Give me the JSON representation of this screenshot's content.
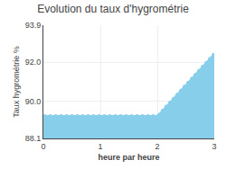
{
  "chart_data": {
    "type": "area",
    "title": "Evolution du taux d'hygrométrie",
    "xlabel": "heure par heure",
    "ylabel": "Taux hygrométrie %",
    "x": [
      0,
      2,
      3
    ],
    "values": [
      89.3,
      89.3,
      92.5
    ],
    "color": "#87CEEB",
    "line_style": "dotted",
    "xlim": [
      0,
      3
    ],
    "xticks": [
      0,
      1,
      2,
      3
    ],
    "ylim": [
      88.1,
      93.9
    ],
    "yticks": [
      88.1,
      {
        "value": 90,
        "label": "90.0"
      },
      {
        "value": 92,
        "label": "92.0"
      },
      93.9
    ],
    "grid": true
  }
}
